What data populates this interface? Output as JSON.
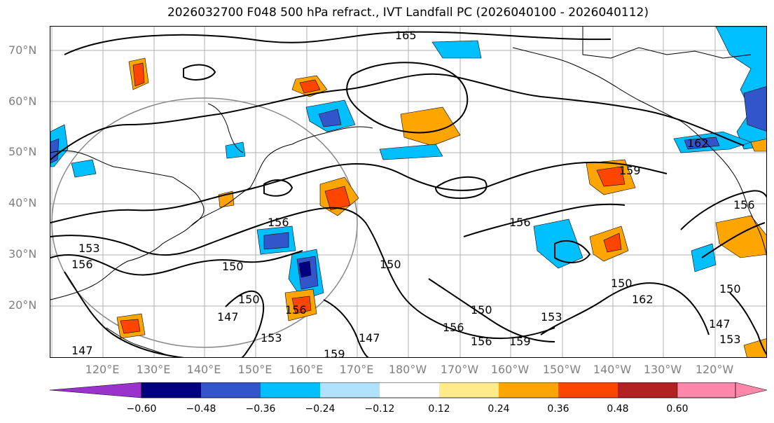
{
  "title": "2026032700 F048 500 hPa refract., IVT Landfall PC (2026040100 - 2026040112)",
  "lat_labels": [
    "70°N",
    "60°N",
    "50°N",
    "40°N",
    "30°N",
    "20°N"
  ],
  "lon_labels": [
    "120°E",
    "130°E",
    "140°E",
    "150°E",
    "160°E",
    "170°E",
    "180°W",
    "170°W",
    "160°W",
    "150°W",
    "140°W",
    "130°W",
    "120°W"
  ],
  "contour_labels": [
    "165",
    "162",
    "159",
    "156",
    "156",
    "156",
    "153",
    "156",
    "150",
    "150",
    "150",
    "150",
    "147",
    "147",
    "153",
    "156",
    "150",
    "156",
    "159",
    "147",
    "159",
    "162",
    "150",
    "147",
    "153",
    "156",
    "153"
  ],
  "colorbar": {
    "colors": [
      "#9933cc",
      "#000080",
      "#3355cc",
      "#00bfff",
      "#b0e2ff",
      "#ffffff",
      "#ffeb8a",
      "#ffa500",
      "#ff4500",
      "#b22222",
      "#ff88aa"
    ],
    "tick_labels": [
      "−0.60",
      "−0.48",
      "−0.36",
      "−0.24",
      "−0.12",
      "0.12",
      "0.24",
      "0.36",
      "0.48",
      "0.60"
    ]
  }
}
